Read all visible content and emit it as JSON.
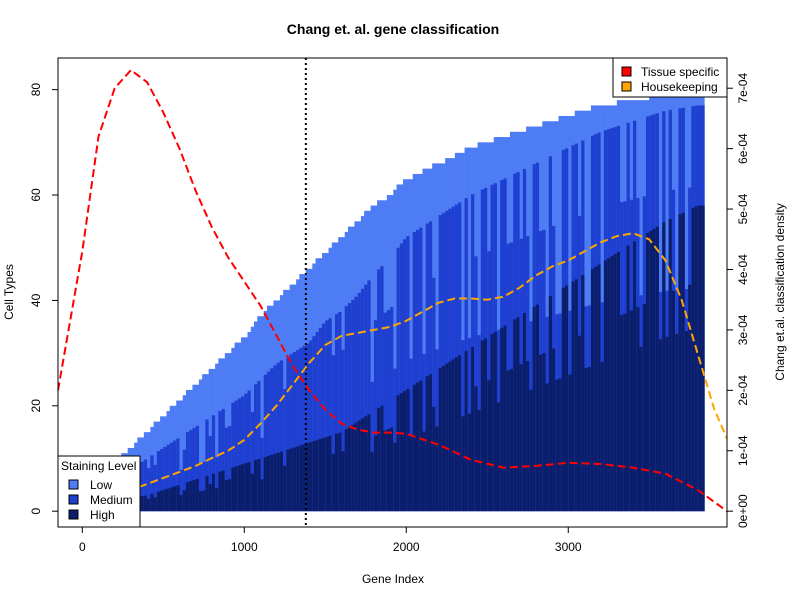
{
  "chart_data": {
    "type": "bar",
    "title": "Chang et. al. gene classification",
    "xlabel": "Gene Index",
    "ylabel": "Cell Types",
    "ylabel_right": "Chang et.al. classification density",
    "xlim": [
      -150,
      3980
    ],
    "ylim": [
      -3,
      86
    ],
    "ylim_right": [
      -2.62e-05,
      0.00075
    ],
    "x_ticks": [
      0,
      1000,
      2000,
      3000
    ],
    "y_ticks": [
      0,
      20,
      40,
      60,
      80
    ],
    "y_ticks_right": [
      "0e+00",
      "1e-04",
      "2e-04",
      "3e-04",
      "4e-04",
      "5e-04",
      "6e-04",
      "7e-04"
    ],
    "gene_count": 3840,
    "cutoff_x": 1380,
    "stacked_envelope": {
      "x": [
        0,
        100,
        200,
        300,
        400,
        500,
        600,
        700,
        800,
        900,
        1000,
        1100,
        1200,
        1300,
        1400,
        1500,
        1600,
        1700,
        1800,
        1900,
        2000,
        2200,
        2400,
        2600,
        2800,
        3000,
        3200,
        3400,
        3600,
        3800
      ],
      "total": [
        3,
        6,
        9,
        12,
        15,
        18,
        21,
        24,
        27,
        30,
        33,
        37,
        40,
        43,
        46,
        49,
        52,
        55,
        58,
        60,
        63,
        66,
        69,
        71,
        73,
        75,
        77,
        78,
        79,
        79
      ],
      "medium": [
        2,
        4,
        6,
        8,
        10,
        12,
        14,
        16,
        18,
        20,
        22,
        25,
        28,
        30,
        32,
        36,
        38,
        41,
        45,
        48,
        52,
        56,
        60,
        63,
        66,
        69,
        72,
        74,
        76,
        77
      ],
      "high": [
        1,
        1.5,
        2,
        2.5,
        3,
        4,
        5,
        6,
        7,
        8,
        9,
        10,
        11,
        12,
        13,
        14,
        15,
        17,
        19,
        21,
        23,
        27,
        31,
        35,
        39,
        43,
        47,
        51,
        55,
        58
      ]
    },
    "series": [
      {
        "name": "Tissue specific",
        "style": "dashed",
        "x": [
          -150,
          0,
          100,
          200,
          300,
          400,
          500,
          600,
          700,
          800,
          900,
          1000,
          1100,
          1200,
          1300,
          1400,
          1500,
          1600,
          1700,
          1800,
          1900,
          2000,
          2200,
          2400,
          2600,
          2800,
          3000,
          3200,
          3400,
          3600,
          3800,
          3980
        ],
        "y": [
          0.0002,
          0.00043,
          0.00062,
          0.0007,
          0.00073,
          0.00071,
          0.00066,
          0.0006,
          0.00053,
          0.00047,
          0.00042,
          0.00038,
          0.00034,
          0.00029,
          0.00024,
          0.0002,
          0.000168,
          0.000145,
          0.000135,
          0.00013,
          0.00013,
          0.000128,
          0.00011,
          8.5e-05,
          7.2e-05,
          7.5e-05,
          8e-05,
          7.8e-05,
          7.2e-05,
          6.2e-05,
          3.5e-05,
          0.0
        ]
      },
      {
        "name": "Housekeeping",
        "style": "dashed",
        "x": [
          0,
          100,
          200,
          300,
          400,
          500,
          600,
          700,
          800,
          900,
          1000,
          1100,
          1200,
          1300,
          1400,
          1500,
          1600,
          1700,
          1800,
          1900,
          2000,
          2100,
          2200,
          2300,
          2400,
          2500,
          2600,
          2700,
          2800,
          2900,
          3000,
          3100,
          3200,
          3300,
          3400,
          3500,
          3600,
          3700,
          3800,
          3900,
          3980
        ],
        "y": [
          8e-06,
          1.5e-05,
          2.5e-05,
          3.5e-05,
          4.5e-05,
          5.5e-05,
          6.5e-05,
          7.5e-05,
          8.8e-05,
          0.0001,
          0.000118,
          0.000145,
          0.000175,
          0.00021,
          0.000245,
          0.000275,
          0.00029,
          0.000295,
          0.0003,
          0.000305,
          0.000315,
          0.00033,
          0.000345,
          0.000352,
          0.000352,
          0.00035,
          0.000355,
          0.00037,
          0.00039,
          0.000405,
          0.000415,
          0.00043,
          0.000445,
          0.000455,
          0.00046,
          0.00045,
          0.000415,
          0.00035,
          0.00026,
          0.00017,
          0.00012
        ]
      }
    ],
    "legend_top": {
      "position": "top-right",
      "items": [
        {
          "label": "Tissue specific",
          "color": "#ff0000"
        },
        {
          "label": "Housekeeping",
          "color": "#ffa500"
        }
      ]
    },
    "legend_bottom": {
      "position": "bottom-left",
      "title": "Staining Level",
      "items": [
        {
          "label": "Low",
          "color": "#4e7cf4"
        },
        {
          "label": "Medium",
          "color": "#1e3fd0"
        },
        {
          "label": "High",
          "color": "#0b1e6b"
        }
      ]
    }
  }
}
